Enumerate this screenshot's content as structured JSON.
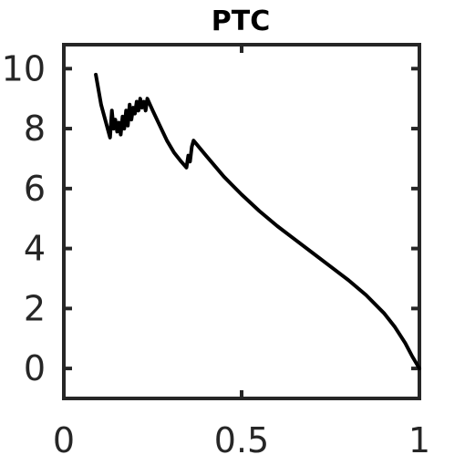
{
  "chart_data": {
    "type": "line",
    "title": "PTC",
    "xlabel": "",
    "ylabel": "",
    "xlim": [
      0,
      1
    ],
    "ylim": [
      -1,
      10.8
    ],
    "x_ticks": [
      0,
      0.5,
      1
    ],
    "x_tick_labels": [
      "0",
      "0.5",
      "1"
    ],
    "y_ticks": [
      0,
      2,
      4,
      6,
      8,
      10
    ],
    "y_tick_labels": [
      "0",
      "2",
      "4",
      "6",
      "8",
      "10"
    ],
    "grid": false,
    "series": [
      {
        "color": "#000000",
        "x": [
          0.09,
          0.105,
          0.13,
          0.135,
          0.14,
          0.145,
          0.15,
          0.155,
          0.16,
          0.165,
          0.17,
          0.175,
          0.18,
          0.185,
          0.19,
          0.195,
          0.2,
          0.205,
          0.21,
          0.215,
          0.22,
          0.225,
          0.23,
          0.235,
          0.25,
          0.27,
          0.29,
          0.31,
          0.33,
          0.345,
          0.35,
          0.355,
          0.36,
          0.365,
          0.4,
          0.45,
          0.5,
          0.55,
          0.6,
          0.65,
          0.7,
          0.75,
          0.8,
          0.85,
          0.9,
          0.93,
          0.96,
          0.98,
          0.99,
          1.0
        ],
        "y": [
          9.8,
          8.8,
          7.7,
          8.6,
          8.0,
          8.3,
          7.9,
          8.2,
          7.8,
          8.4,
          8.0,
          8.6,
          8.1,
          8.8,
          8.3,
          8.7,
          8.5,
          8.9,
          8.6,
          9.0,
          8.7,
          8.9,
          8.6,
          9.0,
          8.6,
          8.1,
          7.6,
          7.2,
          6.9,
          6.7,
          7.1,
          6.9,
          7.4,
          7.6,
          7.1,
          6.4,
          5.8,
          5.25,
          4.75,
          4.3,
          3.85,
          3.4,
          2.95,
          2.45,
          1.85,
          1.4,
          0.85,
          0.4,
          0.2,
          0.0
        ]
      }
    ]
  }
}
